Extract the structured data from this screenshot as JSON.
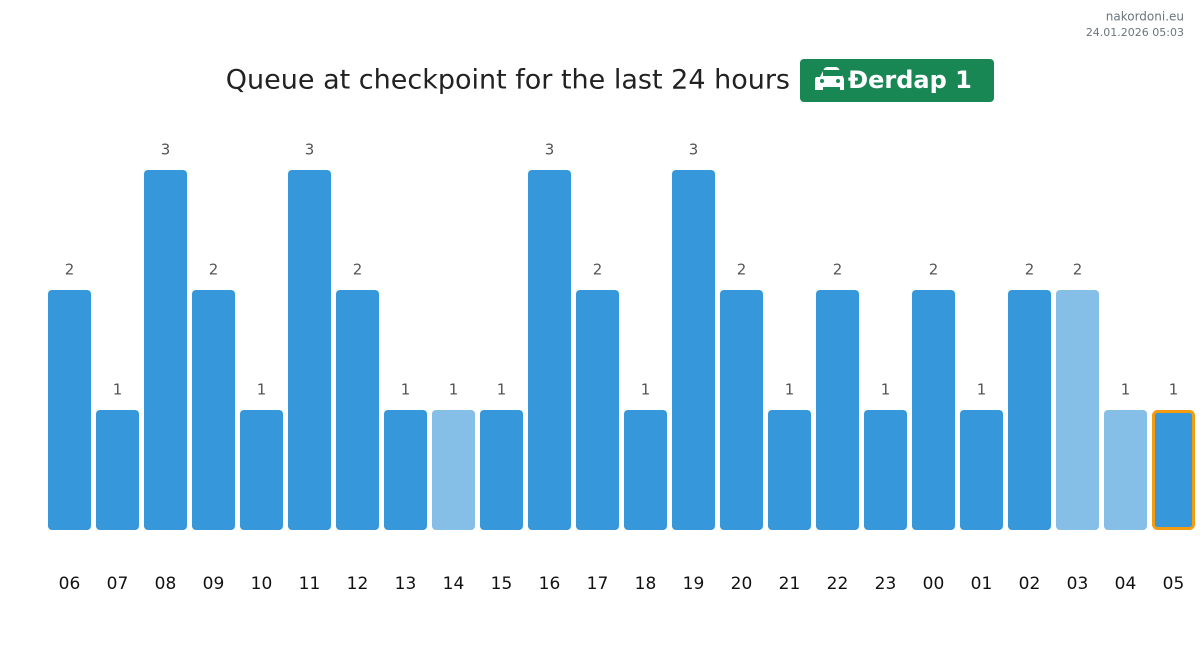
{
  "chart_data": {
    "type": "bar",
    "title": "Queue at checkpoint for the last 24 hours",
    "checkpoint": "Đerdap 1",
    "source": "nakordoni.eu",
    "timestamp": "24.01.2026 05:03",
    "categories": [
      "06",
      "07",
      "08",
      "09",
      "10",
      "11",
      "12",
      "13",
      "14",
      "15",
      "16",
      "17",
      "18",
      "19",
      "20",
      "21",
      "22",
      "23",
      "00",
      "01",
      "02",
      "03",
      "04",
      "05"
    ],
    "values": [
      2,
      1,
      3,
      2,
      1,
      3,
      2,
      1,
      1,
      1,
      3,
      2,
      1,
      3,
      2,
      1,
      2,
      1,
      2,
      1,
      2,
      2,
      1,
      1
    ],
    "colors": [
      "#3797db",
      "#3797db",
      "#3797db",
      "#3797db",
      "#3797db",
      "#3797db",
      "#3797db",
      "#3797db",
      "#85bfe7",
      "#3797db",
      "#3797db",
      "#3797db",
      "#3797db",
      "#3797db",
      "#3797db",
      "#3797db",
      "#3797db",
      "#3797db",
      "#3797db",
      "#3797db",
      "#3797db",
      "#85bfe7",
      "#85bfe7",
      "#3797db"
    ],
    "outline_colors": [
      null,
      null,
      null,
      null,
      null,
      null,
      null,
      null,
      null,
      null,
      null,
      null,
      null,
      null,
      null,
      null,
      null,
      null,
      null,
      null,
      null,
      null,
      null,
      "#f39c12"
    ],
    "ylim": [
      0,
      3
    ]
  }
}
